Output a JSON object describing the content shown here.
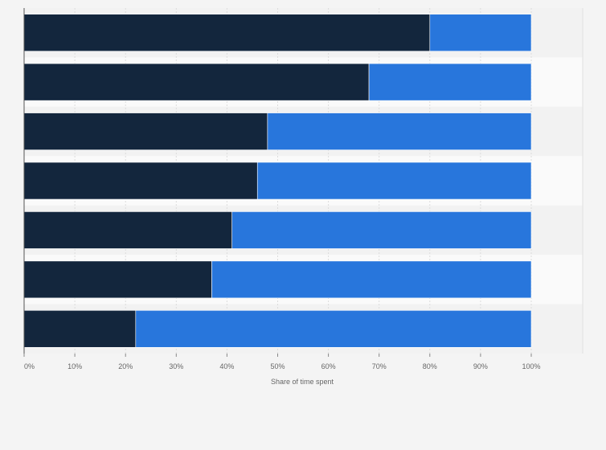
{
  "chart_data": {
    "type": "bar",
    "orientation": "horizontal",
    "stacked": true,
    "categories": [
      "",
      "",
      "",
      "",
      "",
      "",
      ""
    ],
    "series": [
      {
        "values": [
          80,
          68,
          48,
          46,
          41,
          37,
          22
        ]
      },
      {
        "values": [
          20,
          32,
          52,
          54,
          59,
          63,
          78
        ]
      }
    ],
    "colors": [
      "#13263d",
      "#2876dc"
    ],
    "xlabel": "Share of time spent",
    "xticks": [
      "0%",
      "10%",
      "20%",
      "30%",
      "40%",
      "50%",
      "60%",
      "70%",
      "80%",
      "90%",
      "100%"
    ],
    "xlim": [
      0,
      100
    ],
    "grid": true,
    "legend": "none"
  }
}
